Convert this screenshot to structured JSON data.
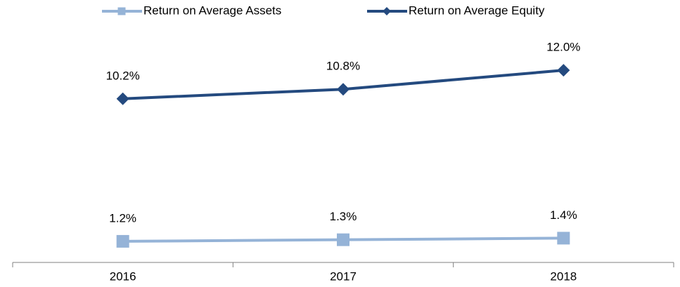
{
  "chart_data": {
    "type": "line",
    "categories": [
      "2016",
      "2017",
      "2018"
    ],
    "series": [
      {
        "name": "Return on Average Assets",
        "color": "#95b3d7",
        "marker": "square",
        "values": [
          1.2,
          1.3,
          1.4
        ],
        "value_labels": [
          "1.2%",
          "1.3%",
          "1.4%"
        ]
      },
      {
        "name": "Return on Average Equity",
        "color": "#244a7f",
        "marker": "diamond",
        "values": [
          10.2,
          10.8,
          12.0
        ],
        "value_labels": [
          "10.2%",
          "10.8%",
          "12.0%"
        ]
      }
    ],
    "ylim": [
      0,
      14
    ],
    "grid": false,
    "legend": "top"
  }
}
